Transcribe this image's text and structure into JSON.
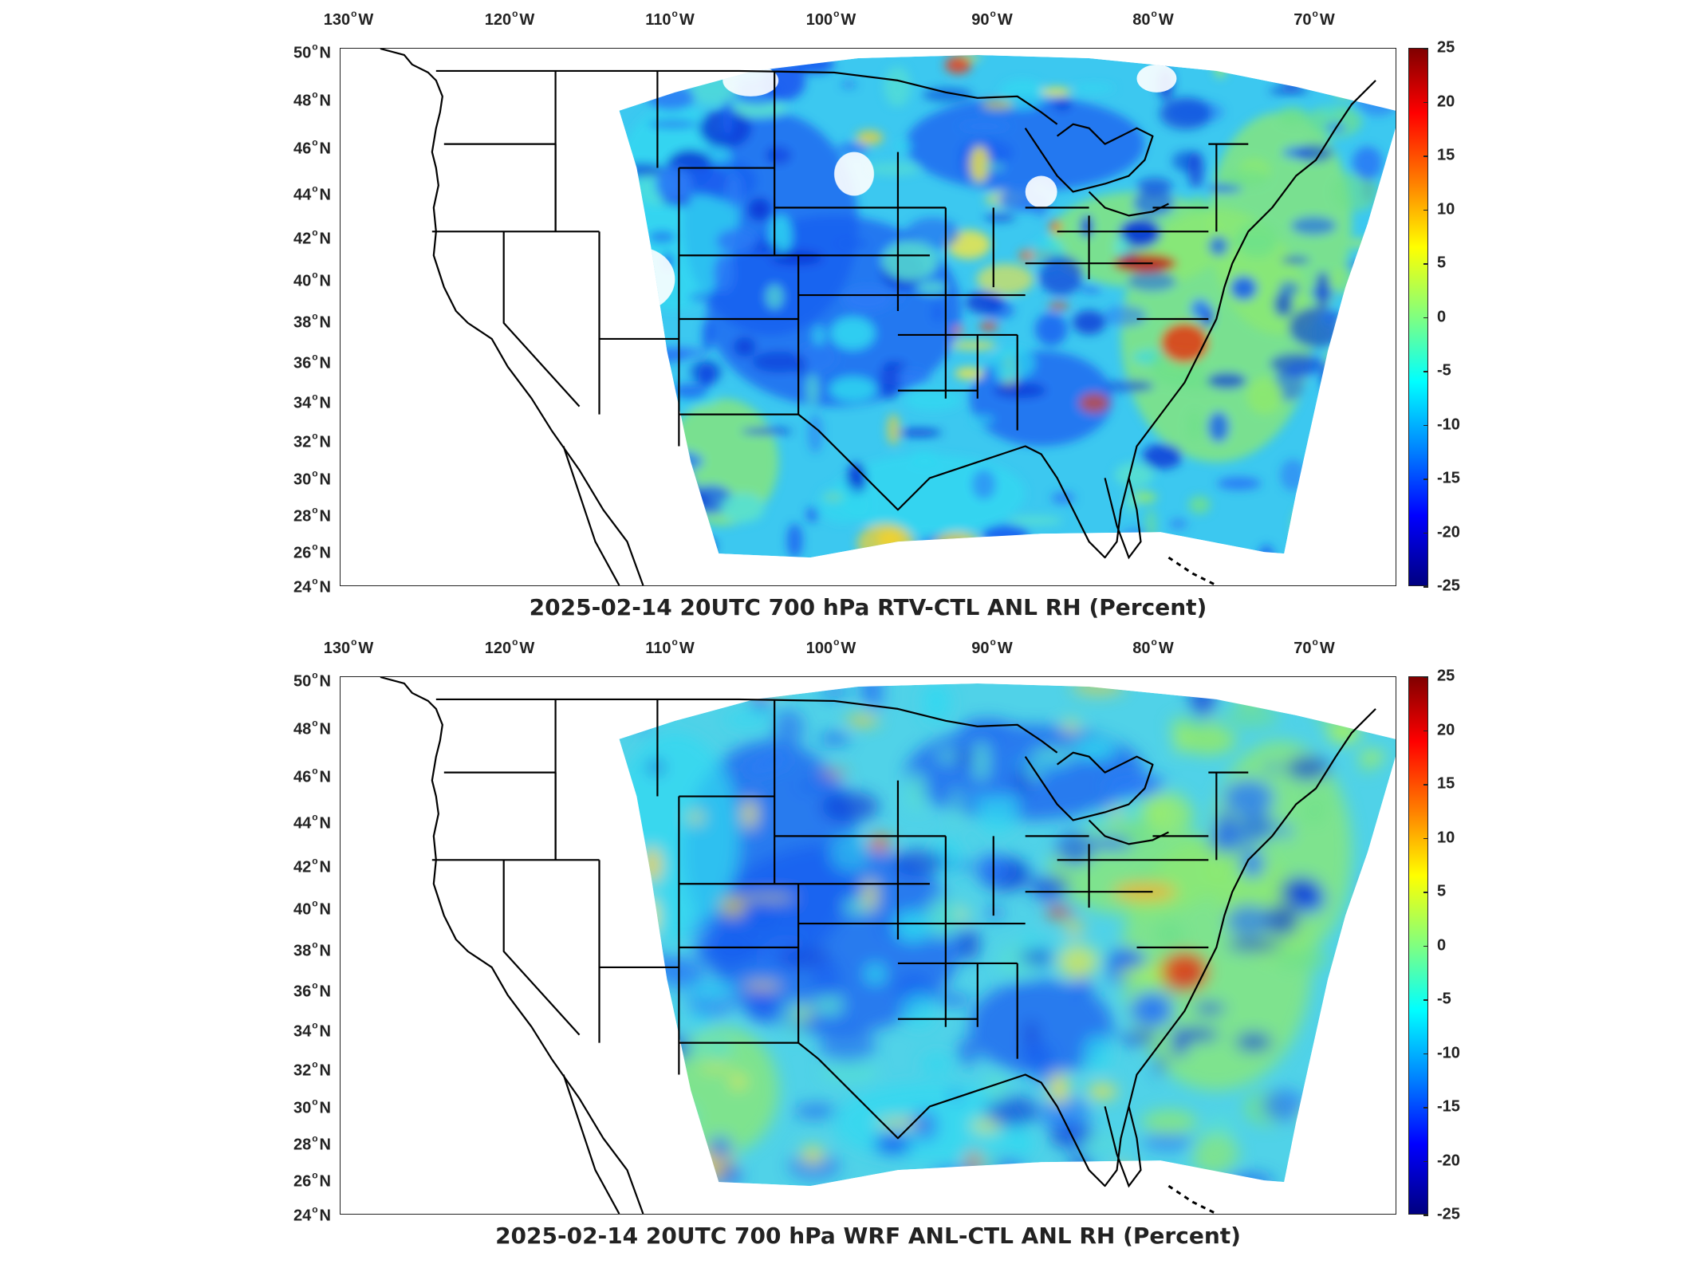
{
  "maps": [
    {
      "title": "2025-02-14 20UTC 700 hPa RTV-CTL ANL RH (Percent)",
      "variant": "rtv"
    },
    {
      "title": "2025-02-14 20UTC 700 hPa WRF ANL-CTL ANL RH (Percent)",
      "variant": "wrf"
    }
  ],
  "lon_ticks": [
    {
      "value": -130,
      "num": "130",
      "hemi": "W"
    },
    {
      "value": -120,
      "num": "120",
      "hemi": "W"
    },
    {
      "value": -110,
      "num": "110",
      "hemi": "W"
    },
    {
      "value": -100,
      "num": "100",
      "hemi": "W"
    },
    {
      "value": -90,
      "num": "90",
      "hemi": "W"
    },
    {
      "value": -80,
      "num": "80",
      "hemi": "W"
    },
    {
      "value": -70,
      "num": "70",
      "hemi": "W"
    }
  ],
  "lat_ticks": [
    {
      "value": 50,
      "num": "50",
      "hemi": "N"
    },
    {
      "value": 48,
      "num": "48",
      "hemi": "N"
    },
    {
      "value": 46,
      "num": "46",
      "hemi": "N"
    },
    {
      "value": 44,
      "num": "44",
      "hemi": "N"
    },
    {
      "value": 42,
      "num": "42",
      "hemi": "N"
    },
    {
      "value": 40,
      "num": "40",
      "hemi": "N"
    },
    {
      "value": 38,
      "num": "38",
      "hemi": "N"
    },
    {
      "value": 36,
      "num": "36",
      "hemi": "N"
    },
    {
      "value": 34,
      "num": "34",
      "hemi": "N"
    },
    {
      "value": 32,
      "num": "32",
      "hemi": "N"
    },
    {
      "value": 30,
      "num": "30",
      "hemi": "N"
    },
    {
      "value": 28,
      "num": "28",
      "hemi": "N"
    },
    {
      "value": 26,
      "num": "26",
      "hemi": "N"
    },
    {
      "value": 24,
      "num": "24",
      "hemi": "N"
    }
  ],
  "colorbar": {
    "ticks": [
      "25",
      "20",
      "15",
      "10",
      "5",
      "0",
      "-5",
      "-10",
      "-15",
      "-20",
      "-25"
    ],
    "min": -25,
    "max": 25,
    "colors": [
      "#800000",
      "#ff0000",
      "#ff8000",
      "#ffff00",
      "#80ff80",
      "#00ffff",
      "#0080ff",
      "#0000ff",
      "#000080"
    ]
  }
}
